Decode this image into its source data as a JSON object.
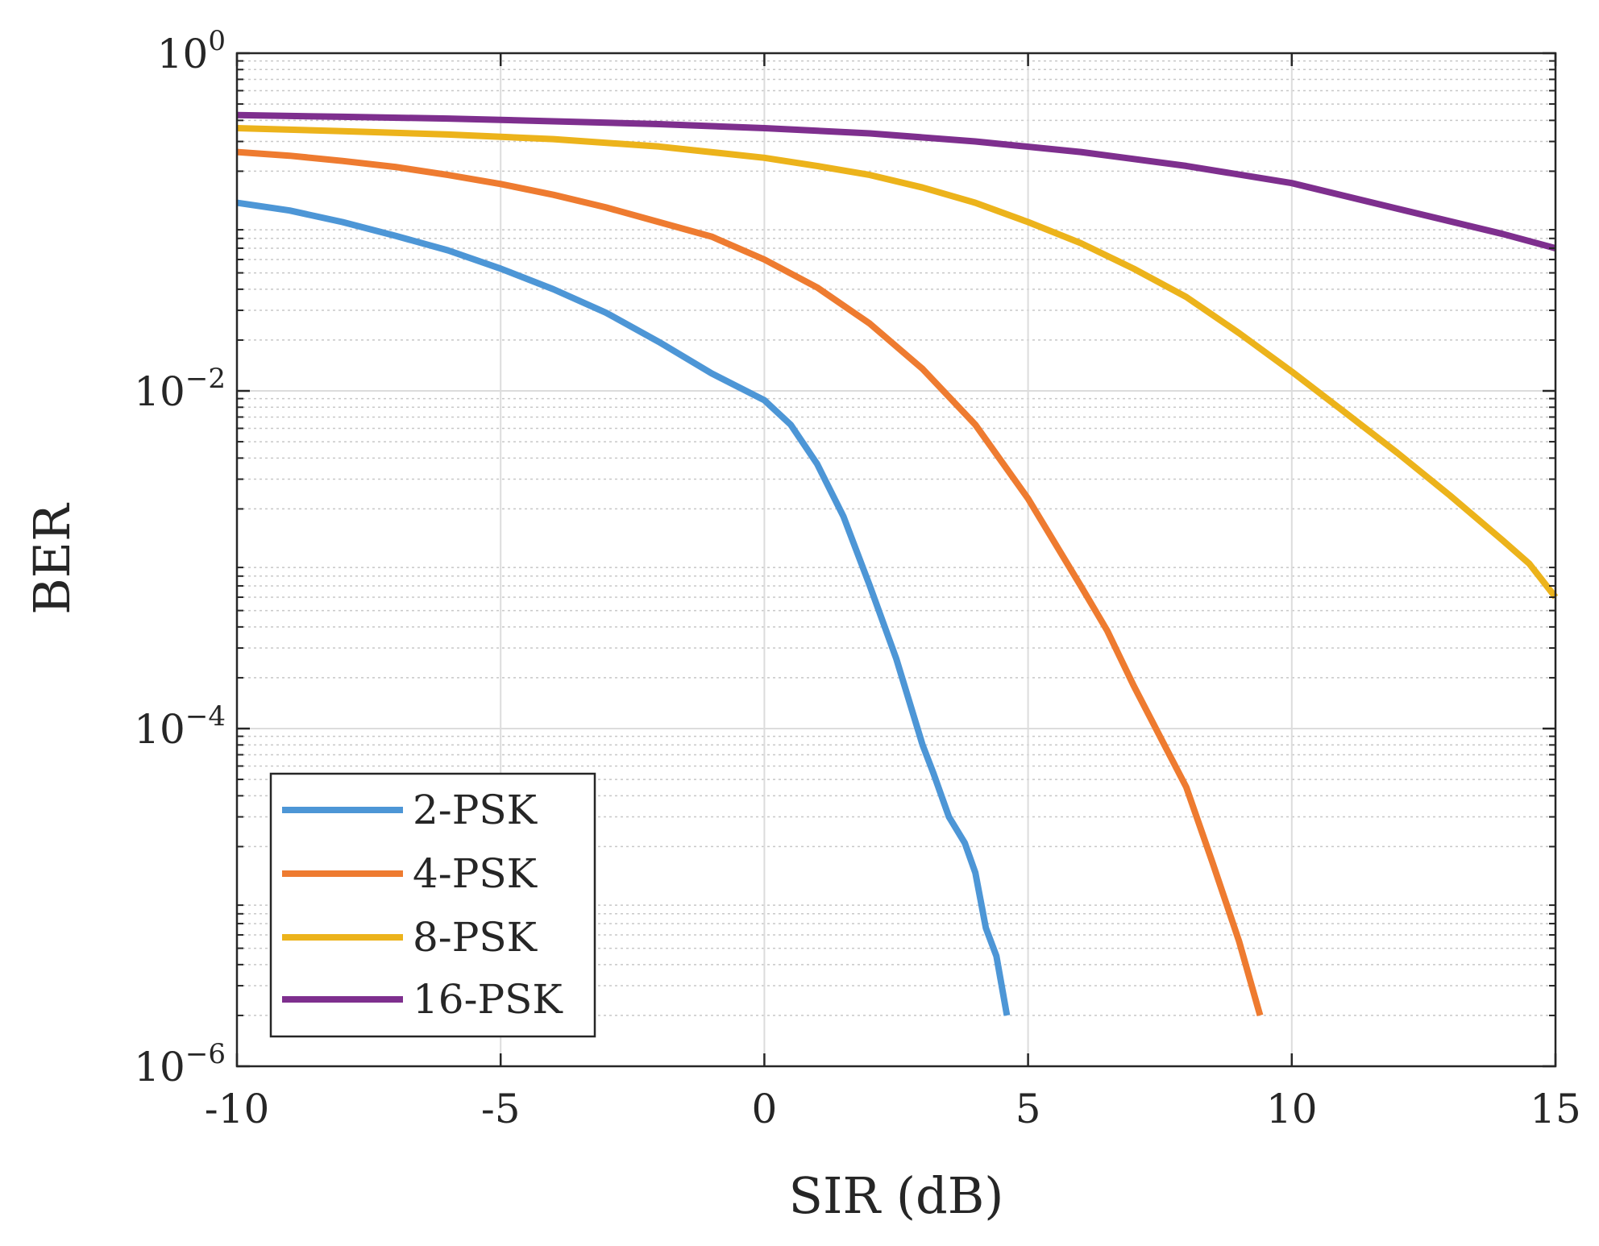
{
  "chart_data": {
    "type": "line",
    "title": "",
    "xlabel": "SIR (dB)",
    "ylabel": "BER",
    "xlim": [
      -10,
      15
    ],
    "ylim": [
      1e-06,
      1
    ],
    "yscale": "log",
    "grid": true,
    "minor_grid": true,
    "legend_position": "bottom-left",
    "x_ticks": [
      -10,
      -5,
      0,
      5,
      10,
      15
    ],
    "x_tick_labels": [
      "-10",
      "-5",
      "0",
      "5",
      "10",
      "15"
    ],
    "y_ticks": [
      1e-06,
      0.0001,
      0.01,
      1
    ],
    "y_tick_labels": [
      {
        "base": "10",
        "exp": "−6"
      },
      {
        "base": "10",
        "exp": "−4"
      },
      {
        "base": "10",
        "exp": "−2"
      },
      {
        "base": "10",
        "exp": "0"
      }
    ],
    "series": [
      {
        "name": "2-PSK",
        "color": "#4d96d6",
        "x": [
          -10,
          -9,
          -8,
          -7,
          -6,
          -5,
          -4,
          -3,
          -2,
          -1,
          0,
          0.5,
          1,
          1.5,
          2,
          2.5,
          3,
          3.2,
          3.5,
          3.8,
          4,
          4.2,
          4.4,
          4.6
        ],
        "y": [
          0.13,
          0.117,
          0.1,
          0.083,
          0.068,
          0.053,
          0.04,
          0.029,
          0.0195,
          0.0127,
          0.0088,
          0.0063,
          0.0037,
          0.0018,
          0.0007,
          0.00026,
          8e-05,
          5.5e-05,
          3e-05,
          2.1e-05,
          1.4e-05,
          6.6e-06,
          4.5e-06,
          2e-06
        ]
      },
      {
        "name": "4-PSK",
        "color": "#ee7b30",
        "x": [
          -10,
          -9,
          -8,
          -7,
          -6,
          -5,
          -4,
          -3,
          -2,
          -1,
          0,
          1,
          2,
          3,
          4,
          5,
          6,
          6.5,
          7,
          7.5,
          8,
          8.5,
          9,
          9.4
        ],
        "y": [
          0.26,
          0.247,
          0.23,
          0.212,
          0.19,
          0.168,
          0.145,
          0.122,
          0.1,
          0.082,
          0.06,
          0.041,
          0.025,
          0.0135,
          0.0063,
          0.0023,
          0.0007,
          0.00038,
          0.00018,
          9e-05,
          4.5e-05,
          1.6e-05,
          5.5e-06,
          2e-06
        ]
      },
      {
        "name": "8-PSK",
        "color": "#ecb31b",
        "x": [
          -10,
          -8,
          -6,
          -4,
          -2,
          0,
          1,
          2,
          3,
          4,
          5,
          6,
          7,
          8,
          9,
          10,
          11,
          12,
          13,
          14,
          14.5,
          15
        ],
        "y": [
          0.36,
          0.345,
          0.33,
          0.31,
          0.28,
          0.24,
          0.215,
          0.19,
          0.16,
          0.13,
          0.1,
          0.075,
          0.053,
          0.036,
          0.022,
          0.013,
          0.0075,
          0.0043,
          0.0024,
          0.0013,
          0.00095,
          0.0006
        ]
      },
      {
        "name": "16-PSK",
        "color": "#7e2f8e",
        "x": [
          -10,
          -8,
          -6,
          -4,
          -2,
          0,
          2,
          4,
          6,
          8,
          10,
          12,
          14,
          15
        ],
        "y": [
          0.43,
          0.42,
          0.41,
          0.395,
          0.38,
          0.36,
          0.335,
          0.3,
          0.26,
          0.215,
          0.17,
          0.12,
          0.085,
          0.07
        ]
      }
    ]
  }
}
